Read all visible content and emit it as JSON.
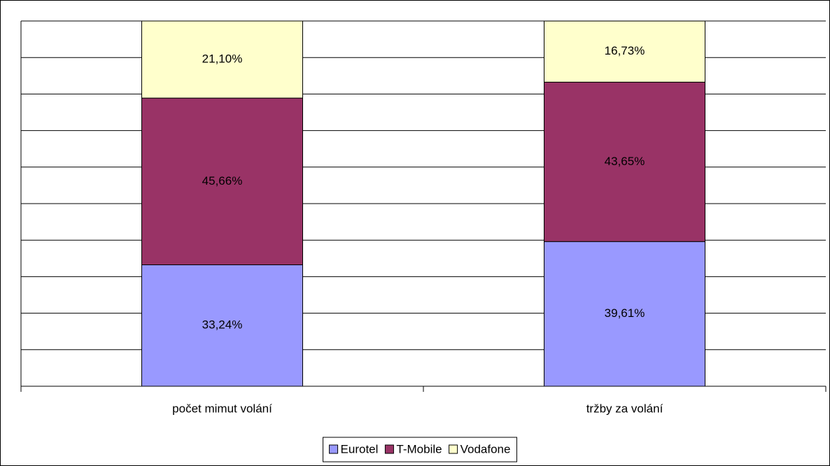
{
  "chart_data": {
    "type": "stacked_bar",
    "categories": [
      "počet mimut volání",
      "tržby za volání"
    ],
    "series": [
      {
        "name": "Eurotel",
        "color": "#9999FF",
        "values": [
          33.24,
          39.61
        ],
        "value_labels": [
          "33,24%",
          "39,61%"
        ]
      },
      {
        "name": "T-Mobile",
        "color": "#993366",
        "values": [
          45.66,
          43.65
        ],
        "value_labels": [
          "45,66%",
          "43,65%"
        ]
      },
      {
        "name": "Vodafone",
        "color": "#FFFFCC",
        "values": [
          21.1,
          16.73
        ],
        "value_labels": [
          "21,10%",
          "16,73%"
        ]
      }
    ],
    "ylim": [
      0,
      100
    ],
    "yticks": [
      0,
      10,
      20,
      30,
      40,
      50,
      60,
      70,
      80,
      90,
      100
    ],
    "grid": true,
    "legend": "bottom"
  }
}
